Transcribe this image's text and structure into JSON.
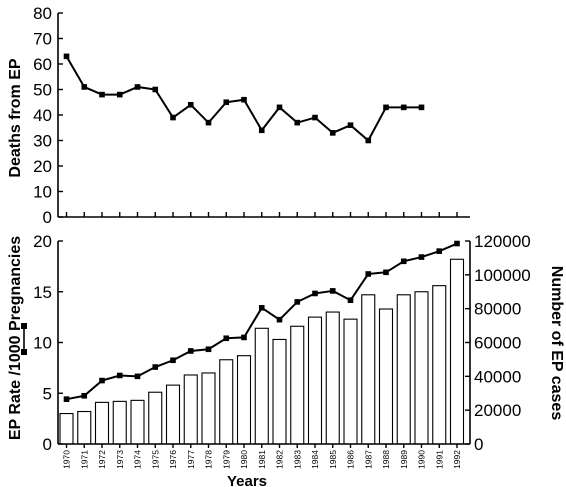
{
  "chart_data": [
    {
      "type": "line",
      "ylabel": "Deaths from EP",
      "ylim": [
        0,
        80
      ],
      "yticks": [
        "0",
        "10",
        "20",
        "30",
        "40",
        "50",
        "60",
        "70",
        "80"
      ],
      "x": [
        "1970",
        "1971",
        "1972",
        "1973",
        "1974",
        "1975",
        "1976",
        "1977",
        "1978",
        "1979",
        "1980",
        "1981",
        "1982",
        "1983",
        "1984",
        "1985",
        "1986",
        "1987",
        "1988",
        "1989",
        "1990"
      ],
      "series": [
        {
          "values": [
            63,
            51,
            48,
            48,
            51,
            50,
            39,
            44,
            37,
            45,
            46,
            34,
            43,
            37,
            39,
            33,
            36,
            30,
            43,
            43,
            43
          ]
        }
      ]
    },
    {
      "type": "bar",
      "xlabel": "Years",
      "categories": [
        "1970",
        "1971",
        "1972",
        "1973",
        "1974",
        "1975",
        "1976",
        "1977",
        "1978",
        "1979",
        "1980",
        "1981",
        "1982",
        "1983",
        "1984",
        "1985",
        "1986",
        "1987",
        "1988",
        "1989",
        "1990",
        "1991",
        "1992"
      ],
      "ylabel": "EP Rate /1000 Pregnancies",
      "ylim": [
        0,
        20
      ],
      "yticks": [
        "0",
        "5",
        "10",
        "15",
        "20"
      ],
      "y2label": "Number of EP cases",
      "y2lim": [
        0,
        120000
      ],
      "y2ticks": [
        "0",
        "20000",
        "40000",
        "60000",
        "80000",
        "100000",
        "120000"
      ],
      "series": [
        {
          "axis": "left",
          "style": "bar",
          "values": [
            3.0,
            3.2,
            4.1,
            4.2,
            4.3,
            5.1,
            5.8,
            6.8,
            7.0,
            8.3,
            8.7,
            11.4,
            10.3,
            11.6,
            12.5,
            13.0,
            12.3,
            14.7,
            13.3,
            14.7,
            15.0,
            15.6,
            18.2
          ]
        },
        {
          "axis": "right",
          "style": "line",
          "values": [
            26500,
            28500,
            37500,
            40500,
            40000,
            45500,
            49500,
            55000,
            56000,
            62500,
            63000,
            80500,
            73500,
            84000,
            89000,
            90500,
            85000,
            100500,
            101500,
            108000,
            110500,
            114000,
            118500
          ]
        }
      ]
    }
  ]
}
